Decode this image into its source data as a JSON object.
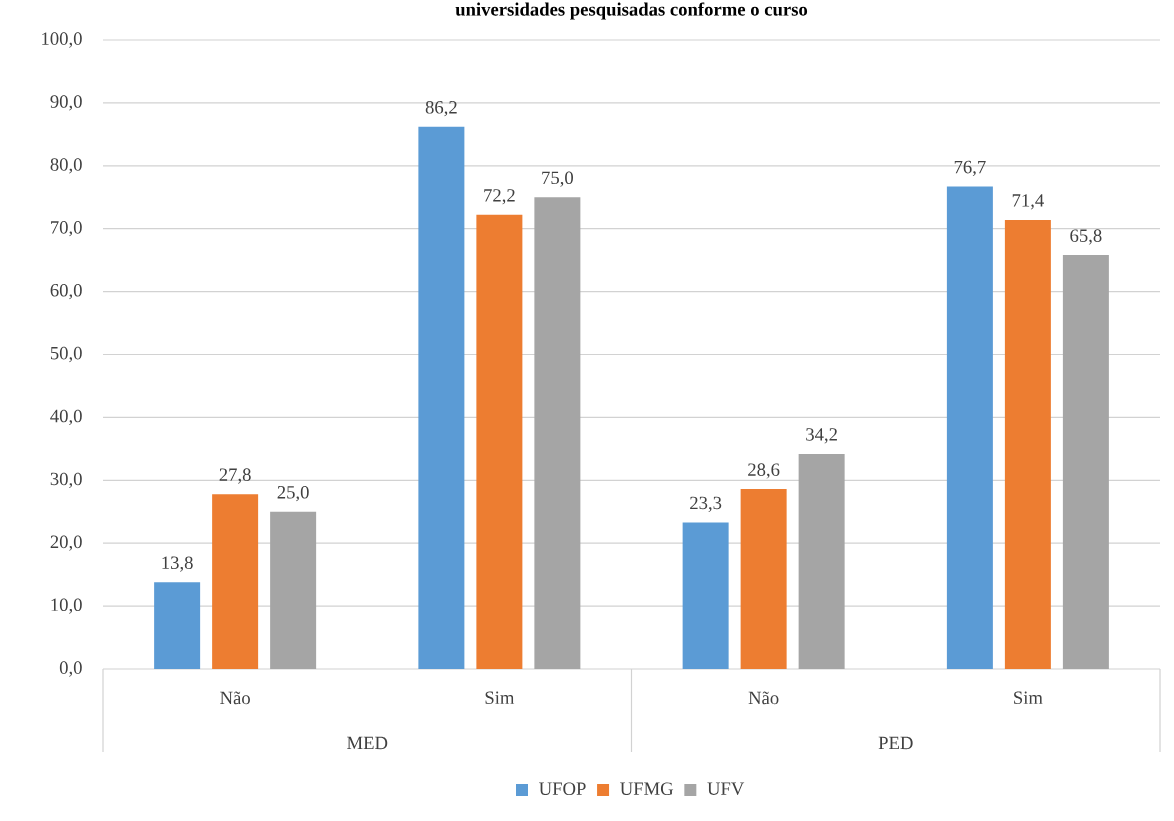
{
  "chart_data": {
    "type": "bar",
    "title": "universidades pesquisadas conforme o curso",
    "categories": [
      "Não",
      "Sim",
      "Não",
      "Sim"
    ],
    "annotations": [
      "MED",
      "PED"
    ],
    "series": [
      {
        "name": "UFOP",
        "color": "#5b9bd5",
        "values": [
          13.8,
          86.2,
          23.3,
          76.7
        ],
        "value_labels": [
          "13,8",
          "86,2",
          "23,3",
          "76,7"
        ]
      },
      {
        "name": "UFMG",
        "color": "#ed7d31",
        "values": [
          27.8,
          72.2,
          28.6,
          71.4
        ],
        "value_labels": [
          "27,8",
          "72,2",
          "28,6",
          "71,4"
        ]
      },
      {
        "name": "UFV",
        "color": "#a5a5a5",
        "values": [
          25.0,
          75.0,
          34.2,
          65.8
        ],
        "value_labels": [
          "25,0",
          "75,0",
          "34,2",
          "65,8"
        ]
      }
    ],
    "ylim": [
      0,
      100
    ],
    "yticks": [
      {
        "value": 0,
        "label": "0,0"
      },
      {
        "value": 10,
        "label": "10,0"
      },
      {
        "value": 20,
        "label": "20,0"
      },
      {
        "value": 30,
        "label": "30,0"
      },
      {
        "value": 40,
        "label": "40,0"
      },
      {
        "value": 50,
        "label": "50,0"
      },
      {
        "value": 60,
        "label": "60,0"
      },
      {
        "value": 70,
        "label": "70,0"
      },
      {
        "value": 80,
        "label": "80,0"
      },
      {
        "value": 90,
        "label": "90,0"
      },
      {
        "value": 100,
        "label": "100,0"
      }
    ],
    "grid": "y",
    "legend": "bottom"
  }
}
